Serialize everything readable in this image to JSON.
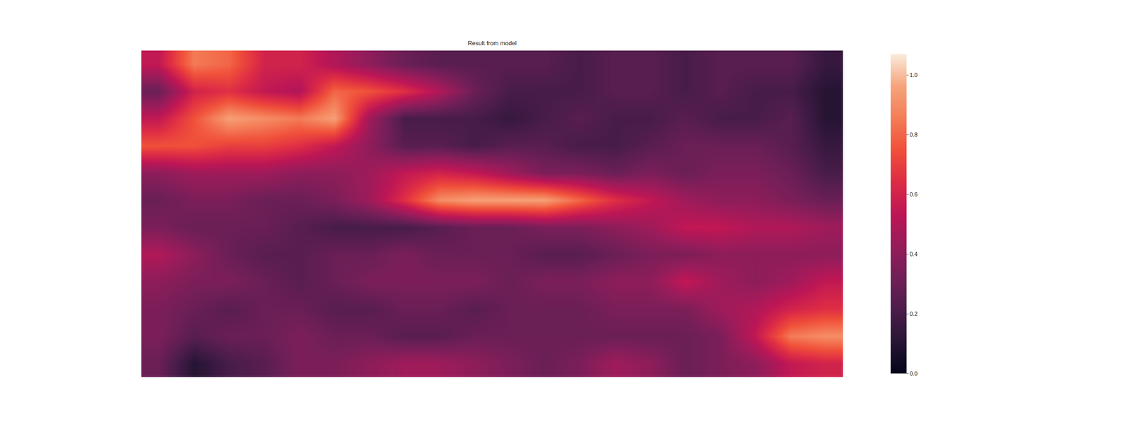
{
  "chart_data": {
    "type": "heatmap",
    "title": "Result from model",
    "tick_labels": false,
    "cells": [
      [
        0.55,
        0.85,
        0.8,
        0.6,
        0.6,
        0.5,
        0.4,
        0.3,
        0.25,
        0.25,
        0.25,
        0.25,
        0.2,
        0.25,
        0.25,
        0.2,
        0.25,
        0.25,
        0.25,
        0.15
      ],
      [
        0.3,
        0.6,
        0.65,
        0.55,
        0.5,
        0.8,
        0.75,
        0.65,
        0.5,
        0.3,
        0.2,
        0.2,
        0.2,
        0.25,
        0.25,
        0.2,
        0.25,
        0.2,
        0.2,
        0.1
      ],
      [
        0.55,
        0.75,
        0.95,
        0.9,
        0.85,
        0.95,
        0.45,
        0.2,
        0.2,
        0.2,
        0.15,
        0.2,
        0.25,
        0.2,
        0.2,
        0.25,
        0.2,
        0.2,
        0.25,
        0.1
      ],
      [
        0.75,
        0.75,
        0.7,
        0.7,
        0.65,
        0.55,
        0.4,
        0.25,
        0.25,
        0.2,
        0.25,
        0.25,
        0.2,
        0.2,
        0.25,
        0.3,
        0.3,
        0.3,
        0.25,
        0.15
      ],
      [
        0.4,
        0.45,
        0.45,
        0.45,
        0.4,
        0.4,
        0.45,
        0.55,
        0.6,
        0.55,
        0.45,
        0.35,
        0.35,
        0.3,
        0.35,
        0.3,
        0.35,
        0.35,
        0.3,
        0.2
      ],
      [
        0.3,
        0.35,
        0.35,
        0.3,
        0.3,
        0.35,
        0.45,
        0.65,
        0.9,
        0.95,
        0.95,
        0.95,
        0.8,
        0.65,
        0.55,
        0.45,
        0.4,
        0.4,
        0.35,
        0.3
      ],
      [
        0.35,
        0.3,
        0.3,
        0.3,
        0.25,
        0.2,
        0.2,
        0.2,
        0.25,
        0.3,
        0.3,
        0.35,
        0.35,
        0.4,
        0.45,
        0.55,
        0.55,
        0.5,
        0.5,
        0.45
      ],
      [
        0.5,
        0.4,
        0.3,
        0.25,
        0.25,
        0.3,
        0.3,
        0.35,
        0.3,
        0.3,
        0.3,
        0.25,
        0.25,
        0.3,
        0.35,
        0.35,
        0.4,
        0.4,
        0.4,
        0.4
      ],
      [
        0.4,
        0.35,
        0.35,
        0.3,
        0.25,
        0.3,
        0.35,
        0.35,
        0.35,
        0.35,
        0.3,
        0.35,
        0.35,
        0.4,
        0.4,
        0.55,
        0.45,
        0.4,
        0.45,
        0.55
      ],
      [
        0.35,
        0.3,
        0.25,
        0.3,
        0.3,
        0.25,
        0.25,
        0.3,
        0.3,
        0.25,
        0.3,
        0.3,
        0.3,
        0.35,
        0.35,
        0.35,
        0.45,
        0.5,
        0.6,
        0.65
      ],
      [
        0.35,
        0.25,
        0.3,
        0.3,
        0.35,
        0.3,
        0.3,
        0.25,
        0.25,
        0.3,
        0.3,
        0.3,
        0.3,
        0.3,
        0.3,
        0.3,
        0.35,
        0.55,
        0.85,
        0.9
      ],
      [
        0.3,
        0.1,
        0.2,
        0.25,
        0.35,
        0.35,
        0.4,
        0.45,
        0.45,
        0.4,
        0.35,
        0.3,
        0.35,
        0.45,
        0.4,
        0.3,
        0.35,
        0.4,
        0.55,
        0.6
      ]
    ],
    "colorbar_range": [
      0,
      1.07
    ],
    "colorbar_ticks": [
      {
        "value": 0,
        "label": "0.0"
      },
      0.2,
      0.4,
      0.6,
      0.8,
      {
        "value": 1,
        "label": "1.0"
      }
    ]
  }
}
